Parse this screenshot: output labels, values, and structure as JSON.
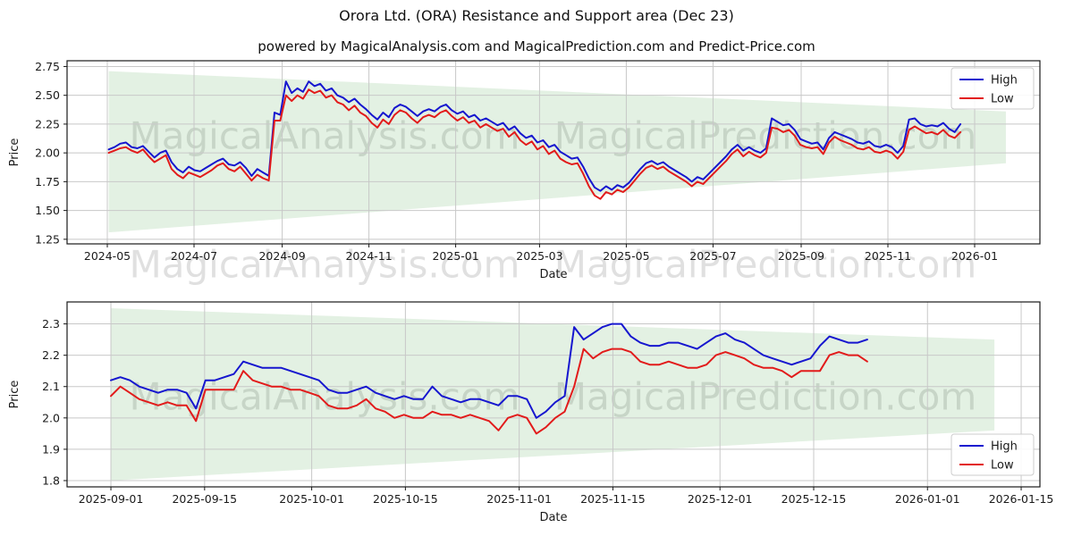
{
  "header": {
    "title": "Orora Ltd. (ORA) Resistance and Support area (Dec 23)",
    "subtitle": "powered by MagicalAnalysis.com and MagicalPrediction.com and Predict-Price.com"
  },
  "watermark": {
    "left_text": "MagicalAnalysis.com",
    "right_text": "MagicalPrediction.com"
  },
  "chart_data": [
    {
      "type": "line",
      "title": "",
      "xlabel": "Date",
      "ylabel": "Price",
      "x_epoch": "2024-05-01",
      "x_start_day": 1,
      "x_end_day": 600,
      "xlim_days": [
        -28.3,
        655.9
      ],
      "ylim": [
        1.21,
        2.8
      ],
      "ytick_values": [
        1.25,
        1.5,
        1.75,
        2.0,
        2.25,
        2.5,
        2.75
      ],
      "ytick_labels": [
        "1.25",
        "1.50",
        "1.75",
        "2.00",
        "2.25",
        "2.50",
        "2.75"
      ],
      "xtick_days": [
        0,
        61,
        123,
        184,
        245,
        304,
        365,
        426,
        488,
        549,
        610
      ],
      "xtick_labels": [
        "2024-05",
        "2024-07",
        "2024-09",
        "2024-11",
        "2025-01",
        "2025-03",
        "2025-05",
        "2025-07",
        "2025-09",
        "2025-11",
        "2026-01"
      ],
      "grid": true,
      "legend_position": "upper-right",
      "band": {
        "name": "resistance-support-area",
        "x_days": [
          1,
          632
        ],
        "top": [
          2.71,
          2.36
        ],
        "bottom": [
          1.31,
          1.91
        ],
        "color": "rgba(0,128,0,0.11)"
      },
      "series": [
        {
          "name": "High",
          "color": "#1616cf",
          "values": [
            2.03,
            2.05,
            2.08,
            2.09,
            2.05,
            2.04,
            2.06,
            2.01,
            1.96,
            2.0,
            2.02,
            1.92,
            1.86,
            1.83,
            1.88,
            1.85,
            1.84,
            1.87,
            1.9,
            1.93,
            1.95,
            1.9,
            1.89,
            1.92,
            1.87,
            1.8,
            1.86,
            1.83,
            1.8,
            2.35,
            2.33,
            2.62,
            2.52,
            2.56,
            2.53,
            2.62,
            2.58,
            2.6,
            2.54,
            2.56,
            2.5,
            2.48,
            2.44,
            2.47,
            2.42,
            2.38,
            2.33,
            2.29,
            2.35,
            2.31,
            2.39,
            2.42,
            2.4,
            2.36,
            2.32,
            2.36,
            2.38,
            2.36,
            2.4,
            2.42,
            2.37,
            2.34,
            2.36,
            2.31,
            2.33,
            2.28,
            2.3,
            2.27,
            2.24,
            2.26,
            2.2,
            2.23,
            2.17,
            2.13,
            2.15,
            2.09,
            2.11,
            2.05,
            2.07,
            2.01,
            1.98,
            1.95,
            1.96,
            1.88,
            1.78,
            1.7,
            1.67,
            1.71,
            1.68,
            1.72,
            1.7,
            1.74,
            1.8,
            1.86,
            1.91,
            1.93,
            1.9,
            1.92,
            1.88,
            1.85,
            1.82,
            1.79,
            1.75,
            1.79,
            1.77,
            1.82,
            1.87,
            1.92,
            1.97,
            2.03,
            2.07,
            2.02,
            2.05,
            2.02,
            2.0,
            2.04,
            2.3,
            2.27,
            2.24,
            2.25,
            2.2,
            2.12,
            2.1,
            2.08,
            2.09,
            2.03,
            2.13,
            2.18,
            2.16,
            2.14,
            2.12,
            2.09,
            2.08,
            2.1,
            2.06,
            2.05,
            2.07,
            2.05,
            2.0,
            2.06,
            2.29,
            2.3,
            2.25,
            2.23,
            2.24,
            2.23,
            2.26,
            2.21,
            2.18,
            2.25
          ]
        },
        {
          "name": "Low",
          "color": "#e21b1b",
          "values": [
            2.0,
            2.02,
            2.04,
            2.05,
            2.02,
            2.0,
            2.03,
            1.97,
            1.92,
            1.95,
            1.98,
            1.86,
            1.81,
            1.78,
            1.83,
            1.81,
            1.79,
            1.82,
            1.85,
            1.89,
            1.91,
            1.86,
            1.84,
            1.88,
            1.82,
            1.76,
            1.81,
            1.78,
            1.76,
            2.28,
            2.28,
            2.5,
            2.45,
            2.5,
            2.47,
            2.55,
            2.52,
            2.54,
            2.48,
            2.5,
            2.44,
            2.42,
            2.37,
            2.41,
            2.35,
            2.32,
            2.26,
            2.22,
            2.29,
            2.25,
            2.33,
            2.37,
            2.35,
            2.3,
            2.26,
            2.31,
            2.33,
            2.31,
            2.35,
            2.37,
            2.32,
            2.28,
            2.31,
            2.26,
            2.28,
            2.22,
            2.25,
            2.22,
            2.19,
            2.21,
            2.14,
            2.18,
            2.11,
            2.07,
            2.1,
            2.03,
            2.06,
            1.99,
            2.02,
            1.95,
            1.92,
            1.9,
            1.91,
            1.82,
            1.71,
            1.63,
            1.6,
            1.66,
            1.64,
            1.68,
            1.66,
            1.7,
            1.76,
            1.82,
            1.87,
            1.89,
            1.86,
            1.88,
            1.84,
            1.81,
            1.78,
            1.75,
            1.71,
            1.75,
            1.73,
            1.78,
            1.83,
            1.88,
            1.93,
            1.99,
            2.03,
            1.97,
            2.01,
            1.98,
            1.96,
            2.0,
            2.22,
            2.21,
            2.18,
            2.2,
            2.15,
            2.07,
            2.05,
            2.04,
            2.05,
            1.99,
            2.09,
            2.14,
            2.11,
            2.09,
            2.07,
            2.04,
            2.03,
            2.05,
            2.01,
            2.0,
            2.02,
            2.0,
            1.95,
            2.01,
            2.2,
            2.23,
            2.2,
            2.17,
            2.18,
            2.16,
            2.2,
            2.15,
            2.13,
            2.18
          ]
        }
      ]
    },
    {
      "type": "line",
      "title": "",
      "xlabel": "Date",
      "ylabel": "Price",
      "x_epoch": "2025-09-01",
      "x_start_day": 0,
      "x_end_day": 113,
      "xlim_days": [
        -6.55,
        138.8
      ],
      "ylim": [
        1.78,
        2.37
      ],
      "ytick_values": [
        1.8,
        1.9,
        2.0,
        2.1,
        2.2,
        2.3
      ],
      "ytick_labels": [
        "1.8",
        "1.9",
        "2.0",
        "2.1",
        "2.2",
        "2.3"
      ],
      "xtick_days": [
        0,
        14,
        30,
        44,
        61,
        75,
        91,
        105,
        122,
        136
      ],
      "xtick_labels": [
        "2025-09-01",
        "2025-09-15",
        "2025-10-01",
        "2025-10-15",
        "2025-11-01",
        "2025-11-15",
        "2025-12-01",
        "2025-12-15",
        "2026-01-01",
        "2026-01-15"
      ],
      "grid": true,
      "legend_position": "lower-right",
      "band": {
        "name": "resistance-support-area",
        "x_days": [
          0,
          132
        ],
        "top": [
          2.35,
          2.25
        ],
        "bottom": [
          1.8,
          1.96
        ],
        "color": "rgba(0,128,0,0.11)"
      },
      "series": [
        {
          "name": "High",
          "color": "#1616cf",
          "values": [
            2.12,
            2.13,
            2.12,
            2.1,
            2.09,
            2.08,
            2.09,
            2.09,
            2.08,
            2.03,
            2.12,
            2.12,
            2.13,
            2.14,
            2.18,
            2.17,
            2.16,
            2.16,
            2.16,
            2.15,
            2.14,
            2.13,
            2.12,
            2.09,
            2.08,
            2.08,
            2.09,
            2.1,
            2.08,
            2.07,
            2.06,
            2.07,
            2.06,
            2.06,
            2.1,
            2.07,
            2.06,
            2.05,
            2.06,
            2.06,
            2.05,
            2.04,
            2.07,
            2.07,
            2.06,
            2.0,
            2.02,
            2.05,
            2.07,
            2.29,
            2.25,
            2.27,
            2.29,
            2.3,
            2.3,
            2.26,
            2.24,
            2.23,
            2.23,
            2.24,
            2.24,
            2.23,
            2.22,
            2.24,
            2.26,
            2.27,
            2.25,
            2.24,
            2.22,
            2.2,
            2.19,
            2.18,
            2.17,
            2.18,
            2.19,
            2.23,
            2.26,
            2.25,
            2.24,
            2.24,
            2.25
          ]
        },
        {
          "name": "Low",
          "color": "#e21b1b",
          "values": [
            2.07,
            2.1,
            2.08,
            2.06,
            2.05,
            2.04,
            2.05,
            2.04,
            2.04,
            1.99,
            2.09,
            2.09,
            2.09,
            2.09,
            2.15,
            2.12,
            2.11,
            2.1,
            2.1,
            2.09,
            2.09,
            2.08,
            2.07,
            2.04,
            2.03,
            2.03,
            2.04,
            2.06,
            2.03,
            2.02,
            2.0,
            2.01,
            2.0,
            2.0,
            2.02,
            2.01,
            2.01,
            2.0,
            2.01,
            2.0,
            1.99,
            1.96,
            2.0,
            2.01,
            2.0,
            1.95,
            1.97,
            2.0,
            2.02,
            2.1,
            2.22,
            2.19,
            2.21,
            2.22,
            2.22,
            2.21,
            2.18,
            2.17,
            2.17,
            2.18,
            2.17,
            2.16,
            2.16,
            2.17,
            2.2,
            2.21,
            2.2,
            2.19,
            2.17,
            2.16,
            2.16,
            2.15,
            2.13,
            2.15,
            2.15,
            2.15,
            2.2,
            2.21,
            2.2,
            2.2,
            2.18
          ]
        }
      ]
    }
  ]
}
